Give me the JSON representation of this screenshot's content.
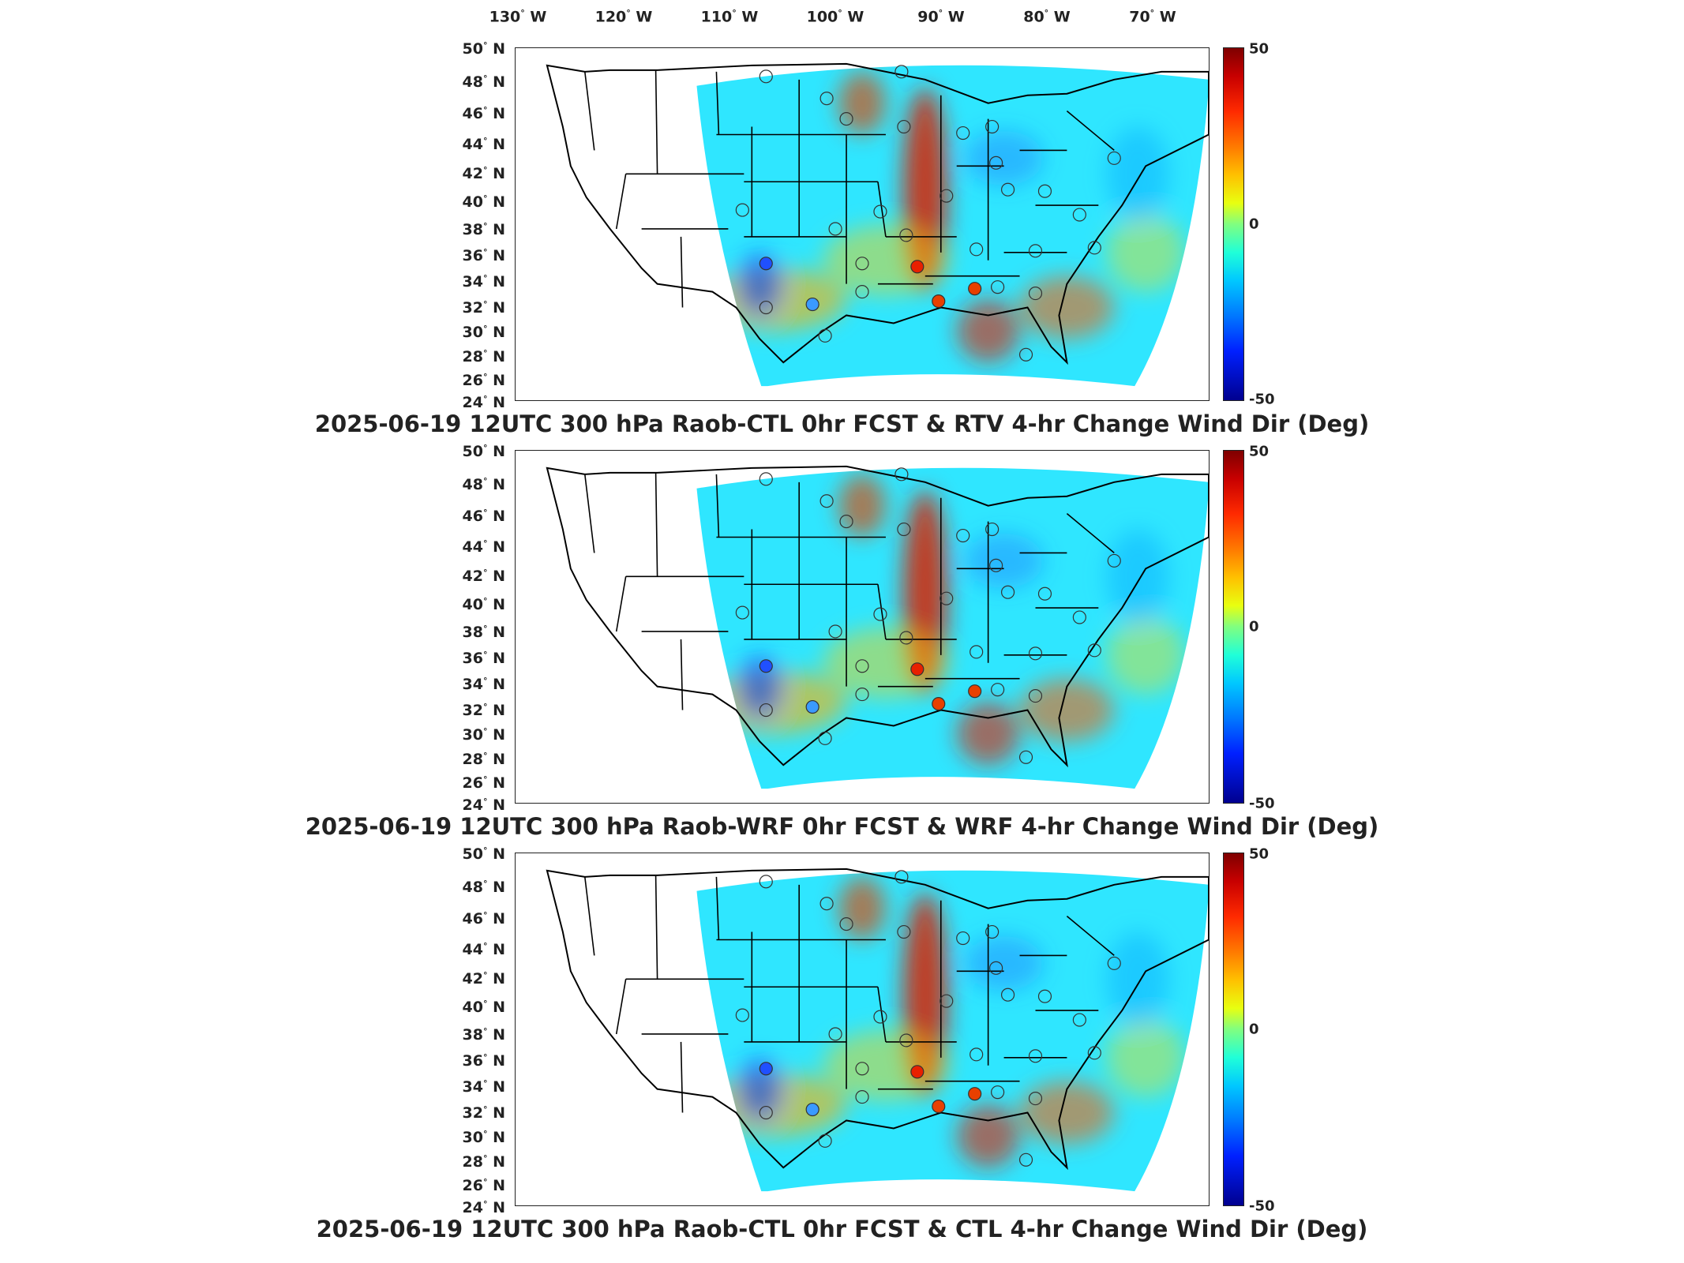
{
  "longitude_labels": [
    {
      "deg": "130",
      "hemi": "W"
    },
    {
      "deg": "120",
      "hemi": "W"
    },
    {
      "deg": "110",
      "hemi": "W"
    },
    {
      "deg": "100",
      "hemi": "W"
    },
    {
      "deg": "90",
      "hemi": "W"
    },
    {
      "deg": "80",
      "hemi": "W"
    },
    {
      "deg": "70",
      "hemi": "W"
    }
  ],
  "latitude_labels": [
    {
      "deg": "50",
      "hemi": "N"
    },
    {
      "deg": "48",
      "hemi": "N"
    },
    {
      "deg": "46",
      "hemi": "N"
    },
    {
      "deg": "44",
      "hemi": "N"
    },
    {
      "deg": "42",
      "hemi": "N"
    },
    {
      "deg": "40",
      "hemi": "N"
    },
    {
      "deg": "38",
      "hemi": "N"
    },
    {
      "deg": "36",
      "hemi": "N"
    },
    {
      "deg": "34",
      "hemi": "N"
    },
    {
      "deg": "32",
      "hemi": "N"
    },
    {
      "deg": "30",
      "hemi": "N"
    },
    {
      "deg": "28",
      "hemi": "N"
    },
    {
      "deg": "26",
      "hemi": "N"
    },
    {
      "deg": "24",
      "hemi": "N"
    }
  ],
  "colorbar": {
    "max": "50",
    "mid": "0",
    "min": "-50",
    "colormap": "jet"
  },
  "panels": [
    {
      "title": "2025-06-19 12UTC 300 hPa Raob-CTL 0hr FCST & RTV 4-hr Change Wind Dir (Deg)"
    },
    {
      "title": "2025-06-19 12UTC 300 hPa Raob-WRF 0hr FCST & WRF 4-hr Change Wind Dir (Deg)"
    },
    {
      "title": "2025-06-19 12UTC 300 hPa Raob-CTL 0hr FCST & CTL 4-hr Change Wind Dir (Deg)"
    }
  ],
  "colors": {
    "max": "#7f0000",
    "zero": "#80ff80",
    "min": "#00008f",
    "field_background": "#2fe6ff"
  }
}
